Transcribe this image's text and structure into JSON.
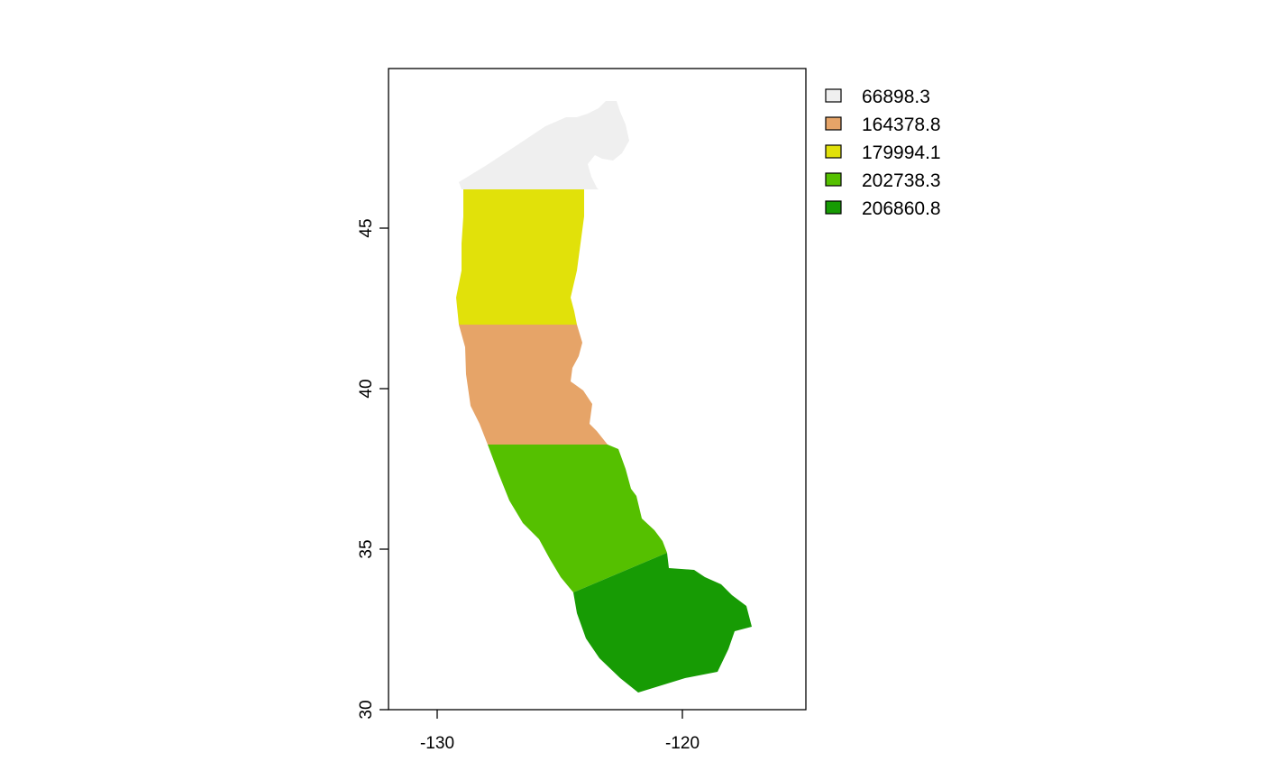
{
  "chart_data": {
    "type": "map",
    "title": "",
    "xlabel": "",
    "ylabel": "",
    "xlim": [
      -132,
      -115
    ],
    "ylim": [
      30,
      50
    ],
    "x_ticks": [
      {
        "value": -130,
        "label": "-130"
      },
      {
        "value": -120,
        "label": "-120"
      }
    ],
    "y_ticks": [
      {
        "value": 30,
        "label": "30"
      },
      {
        "value": 35,
        "label": "35"
      },
      {
        "value": 40,
        "label": "40"
      },
      {
        "value": 45,
        "label": "45"
      }
    ],
    "legend_position": "top-right",
    "legend": [
      {
        "label": "66898.3",
        "color": "#efefef"
      },
      {
        "label": "164378.8",
        "color": "#e6a468"
      },
      {
        "label": "179994.1",
        "color": "#e1e10a"
      },
      {
        "label": "202738.3",
        "color": "#55c000"
      },
      {
        "label": "206860.8",
        "color": "#179b04"
      }
    ],
    "regions": [
      {
        "value": "66898.3",
        "color": "#efefef"
      },
      {
        "value": "179994.1",
        "color": "#e1e10a"
      },
      {
        "value": "164378.8",
        "color": "#e6a468"
      },
      {
        "value": "202738.3",
        "color": "#55c000"
      },
      {
        "value": "206860.8",
        "color": "#179b04"
      }
    ]
  }
}
